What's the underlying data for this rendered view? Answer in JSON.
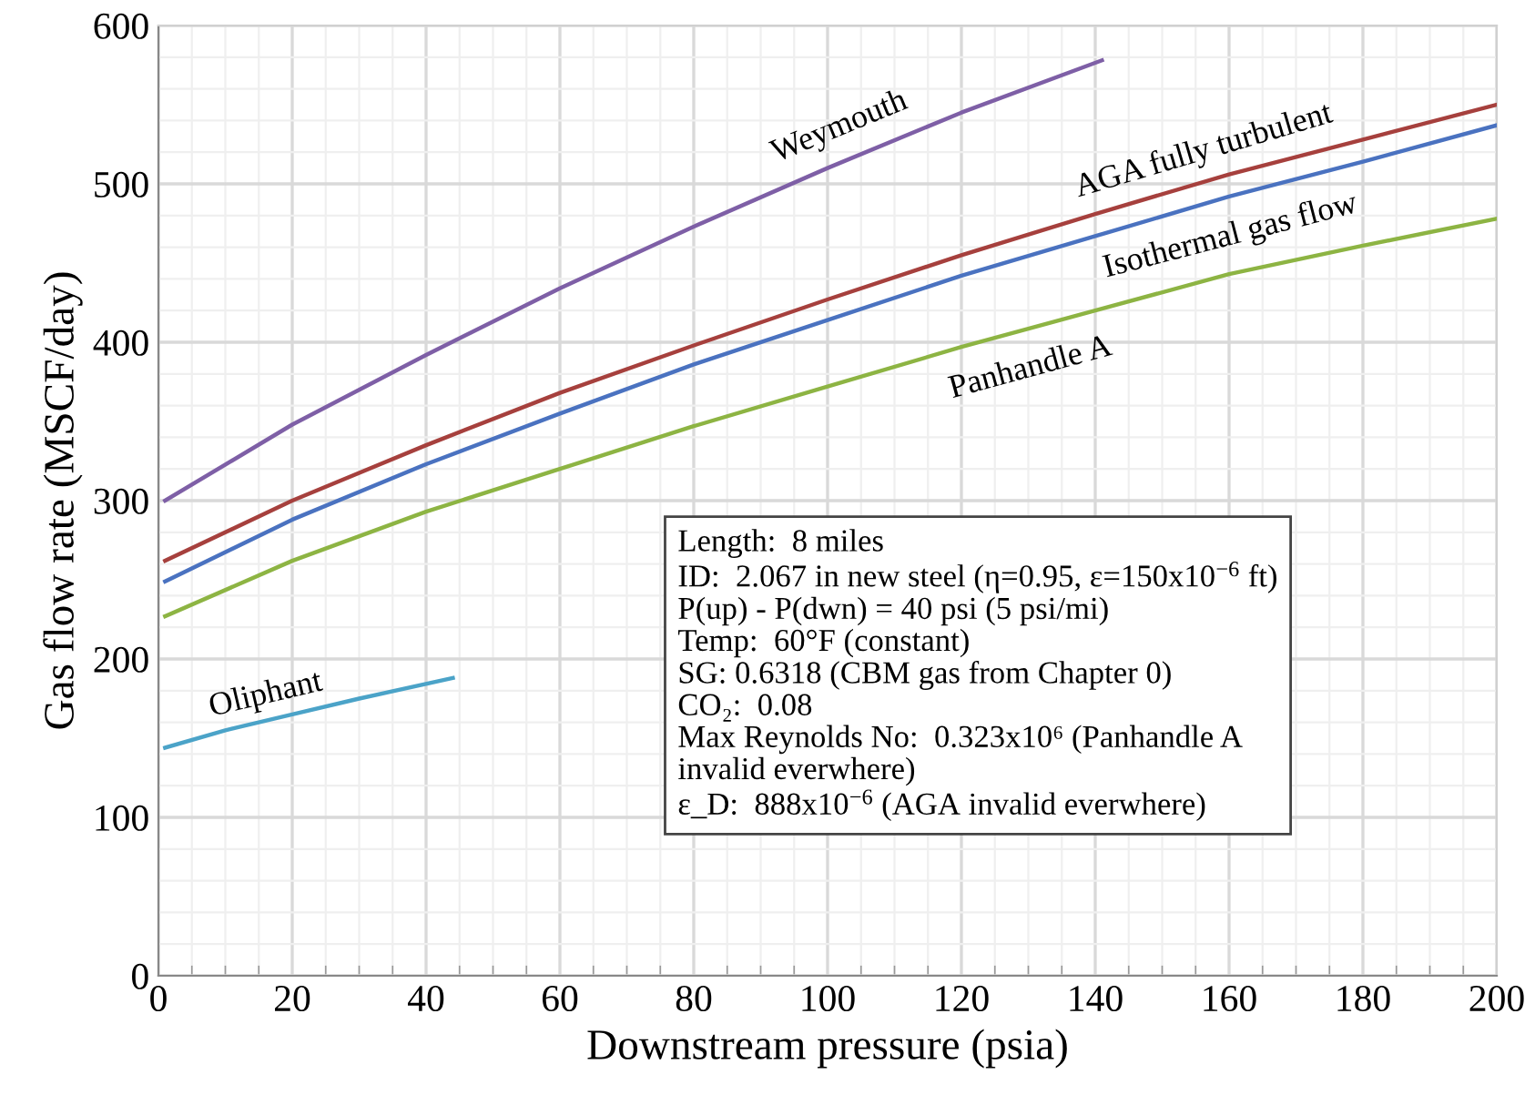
{
  "chart_data": {
    "type": "line",
    "xlabel": "Downstream pressure (psia)",
    "ylabel": "Gas flow rate (MSCF/day)",
    "xlim": [
      0,
      200
    ],
    "ylim": [
      0,
      600
    ],
    "xticks": [
      0,
      20,
      40,
      60,
      80,
      100,
      120,
      140,
      160,
      180,
      200
    ],
    "yticks": [
      0,
      100,
      200,
      300,
      400,
      500,
      600
    ],
    "grid": true,
    "legend": false,
    "marker": "none",
    "line_style": "solid",
    "series": [
      {
        "name": "Weymouth",
        "color": "#7e5fa6",
        "x": [
          1,
          20,
          40,
          60,
          80,
          100,
          120,
          141
        ],
        "values": [
          300,
          348,
          392,
          434,
          473,
          510,
          545,
          578
        ]
      },
      {
        "name": "AGA fully turbulent",
        "color": "#a6403d",
        "x": [
          1,
          20,
          40,
          60,
          80,
          100,
          120,
          140,
          160,
          180,
          200
        ],
        "values": [
          262,
          300,
          335,
          368,
          398,
          427,
          455,
          481,
          506,
          528,
          550
        ]
      },
      {
        "name": "Isothermal gas flow",
        "color": "#4a72c0",
        "x": [
          1,
          20,
          40,
          60,
          80,
          100,
          120,
          140,
          160,
          180,
          200
        ],
        "values": [
          249,
          288,
          323,
          355,
          386,
          414,
          442,
          467,
          492,
          514,
          537
        ]
      },
      {
        "name": "Panhandle A",
        "color": "#8db443",
        "x": [
          1,
          20,
          40,
          60,
          80,
          100,
          120,
          140,
          160,
          180,
          200
        ],
        "values": [
          227,
          262,
          293,
          320,
          347,
          372,
          397,
          420,
          443,
          461,
          478
        ]
      },
      {
        "name": "Oliphant",
        "color": "#4ba3c8",
        "x": [
          1,
          10,
          20,
          30,
          44
        ],
        "values": [
          144,
          155,
          165,
          175,
          188
        ]
      }
    ],
    "annotations": [
      "Length:  8 miles\nID:  2.067 in new steel (η=0.95, ε=150x10$^{−6}$ ft)\nP(up) - P(dwn) = 40 psi (5 psi/mi)\nTemp:  60°F (constant)\nSG: 0.6318 (CBM gas from Chapter 0)\nCO₂:  0.08\nMax Reynolds No:  0.323x10⁶ (Panhandle A\ninvalid everwhere)\nε_D:  888x10$^{−6}$ (AGA invalid everwhere)"
    ]
  }
}
